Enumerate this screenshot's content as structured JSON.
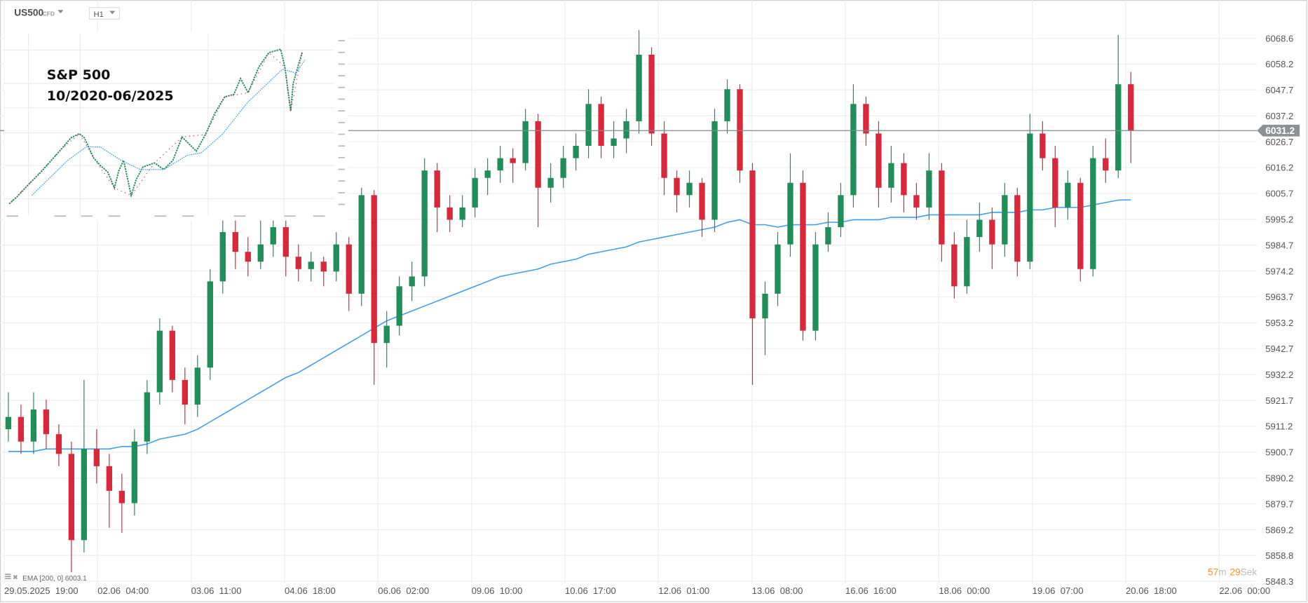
{
  "header": {
    "symbol": "US500",
    "symbol_type": "CFD",
    "timeframe": "H1"
  },
  "inset": {
    "title_line1": "S&P 500",
    "title_line2": "10/2020-06/2025"
  },
  "indicator": {
    "label": "EMA [200,  0] 6003.1"
  },
  "countdown": {
    "minutes": "57",
    "minutes_unit": "m",
    "seconds": "29",
    "seconds_unit": "Sek"
  },
  "colors": {
    "up": "#1f8f5a",
    "down": "#d9283a",
    "ema": "#3a9df0",
    "price_tag": "#8a9298",
    "countdown": "#f5961e"
  },
  "chart_data": {
    "type": "candlestick",
    "ylim": [
      5848.3,
      6068.6
    ],
    "grid": true,
    "current_price": "6031.2",
    "y_ticks": [
      "6068.6",
      "6058.2",
      "6047.7",
      "6037.2",
      "6026.7",
      "6016.2",
      "6005.7",
      "5995.2",
      "5984.7",
      "5974.2",
      "5963.7",
      "5953.2",
      "5942.7",
      "5932.2",
      "5921.7",
      "5911.2",
      "5900.7",
      "5890.2",
      "5879.7",
      "5869.2",
      "5858.8",
      "5848.3"
    ],
    "x_ticks": [
      "29.05.2025  19:00",
      "02.06  04:00",
      "03.06  11:00",
      "04.06  18:00",
      "06.06  02:00",
      "09.06  10:00",
      "10.06  17:00",
      "12.06  01:00",
      "13.06  08:00",
      "16.06  16:00",
      "18.06  00:00",
      "19.06  07:00",
      "20.06  18:00",
      "22.06  00:00"
    ],
    "candles": [
      [
        5910,
        5925,
        5905,
        5915
      ],
      [
        5915,
        5920,
        5900,
        5905
      ],
      [
        5905,
        5925,
        5900,
        5918
      ],
      [
        5918,
        5922,
        5902,
        5908
      ],
      [
        5908,
        5912,
        5895,
        5900
      ],
      [
        5900,
        5905,
        5852,
        5865
      ],
      [
        5865,
        5930,
        5860,
        5902
      ],
      [
        5902,
        5910,
        5888,
        5895
      ],
      [
        5895,
        5900,
        5870,
        5885
      ],
      [
        5885,
        5892,
        5868,
        5880
      ],
      [
        5880,
        5910,
        5875,
        5905
      ],
      [
        5905,
        5930,
        5900,
        5925
      ],
      [
        5925,
        5955,
        5920,
        5950
      ],
      [
        5950,
        5952,
        5925,
        5930
      ],
      [
        5930,
        5935,
        5912,
        5920
      ],
      [
        5920,
        5940,
        5915,
        5935
      ],
      [
        5935,
        5975,
        5930,
        5970
      ],
      [
        5970,
        5998,
        5965,
        5990
      ],
      [
        5990,
        5995,
        5975,
        5982
      ],
      [
        5982,
        5988,
        5972,
        5978
      ],
      [
        5978,
        5995,
        5975,
        5985
      ],
      [
        5985,
        5998,
        5980,
        5992
      ],
      [
        5992,
        5995,
        5972,
        5980
      ],
      [
        5980,
        5985,
        5970,
        5975
      ],
      [
        5975,
        5982,
        5970,
        5978
      ],
      [
        5978,
        5980,
        5968,
        5974
      ],
      [
        5974,
        5990,
        5970,
        5985
      ],
      [
        5985,
        5988,
        5958,
        5965
      ],
      [
        5965,
        6008,
        5960,
        6005
      ],
      [
        6005,
        6007,
        5928,
        5945
      ],
      [
        5945,
        5958,
        5935,
        5952
      ],
      [
        5952,
        5972,
        5948,
        5968
      ],
      [
        5968,
        5978,
        5962,
        5972
      ],
      [
        5972,
        6020,
        5968,
        6015
      ],
      [
        6015,
        6018,
        5990,
        6000
      ],
      [
        6000,
        6005,
        5990,
        5995
      ],
      [
        5995,
        6005,
        5992,
        6000
      ],
      [
        6000,
        6016,
        5996,
        6012
      ],
      [
        6012,
        6020,
        6005,
        6015
      ],
      [
        6015,
        6025,
        6010,
        6020
      ],
      [
        6020,
        6024,
        6010,
        6018
      ],
      [
        6018,
        6040,
        6015,
        6035
      ],
      [
        6035,
        6038,
        5992,
        6008
      ],
      [
        6008,
        6018,
        6002,
        6012
      ],
      [
        6012,
        6025,
        6008,
        6020
      ],
      [
        6020,
        6030,
        6015,
        6025
      ],
      [
        6025,
        6048,
        6020,
        6042
      ],
      [
        6042,
        6045,
        6020,
        6025
      ],
      [
        6025,
        6035,
        6020,
        6028
      ],
      [
        6028,
        6040,
        6022,
        6035
      ],
      [
        6035,
        6072,
        6030,
        6062
      ],
      [
        6062,
        6065,
        6025,
        6030
      ],
      [
        6030,
        6035,
        6005,
        6012
      ],
      [
        6012,
        6015,
        5998,
        6005
      ],
      [
        6005,
        6015,
        6000,
        6010
      ],
      [
        6010,
        6012,
        5988,
        5995
      ],
      [
        5995,
        6040,
        5990,
        6035
      ],
      [
        6035,
        6052,
        6030,
        6048
      ],
      [
        6048,
        6050,
        6010,
        6015
      ],
      [
        6015,
        6018,
        5928,
        5955
      ],
      [
        5955,
        5970,
        5940,
        5965
      ],
      [
        5965,
        5990,
        5960,
        5985
      ],
      [
        5985,
        6022,
        5980,
        6010
      ],
      [
        6010,
        6015,
        5946,
        5950
      ],
      [
        5950,
        5990,
        5946,
        5985
      ],
      [
        5985,
        5998,
        5982,
        5992
      ],
      [
        5992,
        6010,
        5988,
        6005
      ],
      [
        6005,
        6050,
        6000,
        6042
      ],
      [
        6042,
        6045,
        6025,
        6030
      ],
      [
        6030,
        6035,
        6000,
        6008
      ],
      [
        6008,
        6025,
        6002,
        6018
      ],
      [
        6018,
        6022,
        5998,
        6005
      ],
      [
        6005,
        6010,
        5995,
        6000
      ],
      [
        6000,
        6022,
        5995,
        6015
      ],
      [
        6015,
        6018,
        5978,
        5985
      ],
      [
        5985,
        5990,
        5963,
        5968
      ],
      [
        5968,
        5995,
        5965,
        5988
      ],
      [
        5988,
        6002,
        5982,
        5995
      ],
      [
        5995,
        6000,
        5975,
        5985
      ],
      [
        5985,
        6010,
        5980,
        6005
      ],
      [
        6005,
        6008,
        5972,
        5978
      ],
      [
        5978,
        6038,
        5975,
        6030
      ],
      [
        6030,
        6035,
        6015,
        6020
      ],
      [
        6020,
        6025,
        5992,
        6000
      ],
      [
        6000,
        6015,
        5995,
        6010
      ],
      [
        6010,
        6012,
        5970,
        5975
      ],
      [
        5975,
        6025,
        5972,
        6020
      ],
      [
        6020,
        6028,
        6010,
        6015
      ],
      [
        6015,
        6070,
        6012,
        6050
      ],
      [
        6050,
        6055,
        6018,
        6031.2
      ]
    ],
    "ema200": [
      5901,
      5901,
      5901,
      5902,
      5902,
      5902,
      5902,
      5902,
      5902,
      5903,
      5903,
      5904,
      5906,
      5907,
      5908,
      5910,
      5913,
      5916,
      5919,
      5922,
      5925,
      5928,
      5931,
      5933,
      5936,
      5939,
      5942,
      5945,
      5948,
      5951,
      5954,
      5956,
      5958,
      5960,
      5962,
      5964,
      5966,
      5968,
      5970,
      5972,
      5973,
      5974,
      5975,
      5977,
      5978,
      5979,
      5981,
      5982,
      5983,
      5984,
      5986,
      5987,
      5988,
      5989,
      5990,
      5991,
      5992,
      5994,
      5995,
      5993,
      5993,
      5992,
      5993,
      5993,
      5993,
      5994,
      5994,
      5995,
      5995,
      5995,
      5996,
      5996,
      5996,
      5997,
      5997,
      5997,
      5997,
      5997,
      5998,
      5998,
      5998,
      5999,
      5999,
      6000,
      6000,
      6000,
      6001,
      6002,
      6003,
      6003.1
    ]
  }
}
